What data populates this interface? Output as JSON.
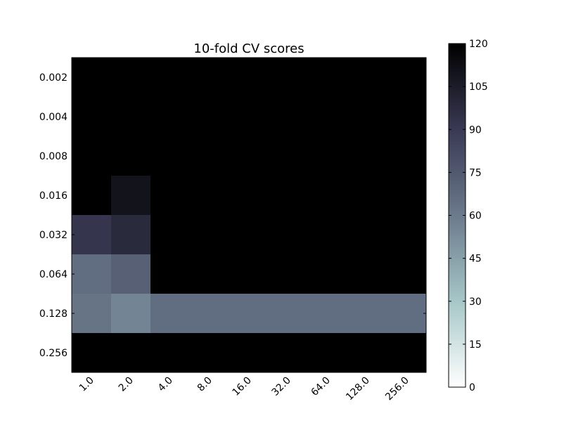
{
  "chart_data": {
    "type": "heatmap",
    "title": "10-fold CV scores",
    "xlabel": "",
    "ylabel": "",
    "x_categories": [
      "1.0",
      "2.0",
      "4.0",
      "8.0",
      "16.0",
      "32.0",
      "64.0",
      "128.0",
      "256.0"
    ],
    "y_categories": [
      "0.002",
      "0.004",
      "0.008",
      "0.016",
      "0.032",
      "0.064",
      "0.128",
      "0.256"
    ],
    "values": [
      [
        120,
        120,
        120,
        120,
        120,
        120,
        120,
        120,
        120
      ],
      [
        120,
        120,
        120,
        120,
        120,
        120,
        120,
        120,
        120
      ],
      [
        120,
        120,
        120,
        120,
        120,
        120,
        120,
        120,
        120
      ],
      [
        120,
        110,
        120,
        120,
        120,
        120,
        120,
        120,
        120
      ],
      [
        92,
        98,
        120,
        120,
        120,
        120,
        120,
        120,
        120
      ],
      [
        66,
        72,
        120,
        120,
        120,
        120,
        120,
        120,
        120
      ],
      [
        63,
        56,
        66,
        66,
        66,
        66,
        66,
        66,
        66
      ],
      [
        120,
        120,
        120,
        120,
        120,
        120,
        120,
        120,
        120
      ]
    ],
    "colormap": "bone_r",
    "colorbar": {
      "range": [
        0,
        120
      ],
      "ticks": [
        "0",
        "15",
        "30",
        "45",
        "60",
        "75",
        "90",
        "105",
        "120"
      ]
    },
    "grid": false
  }
}
